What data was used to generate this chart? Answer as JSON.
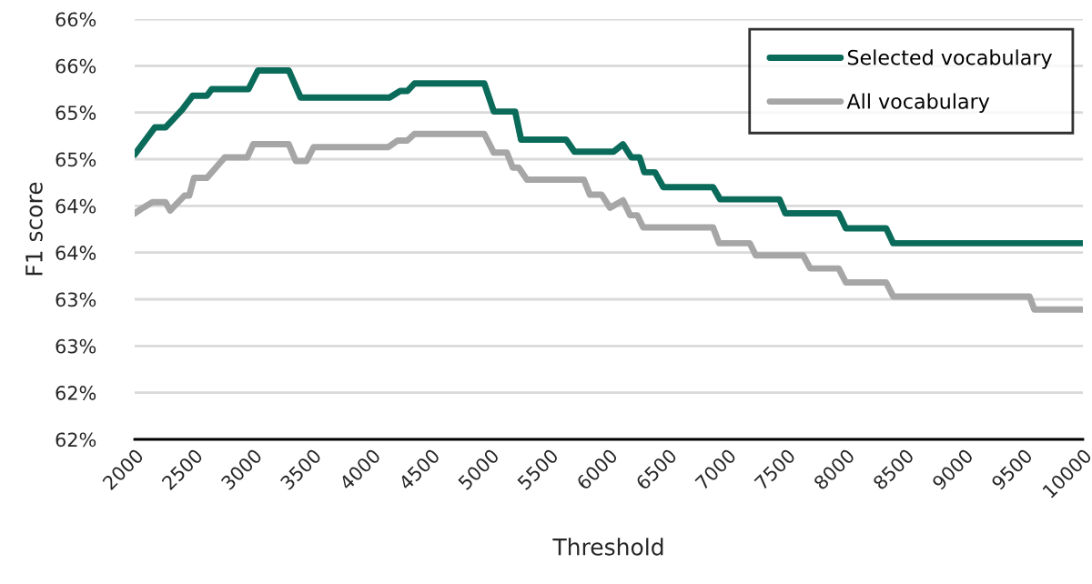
{
  "chart_data": {
    "type": "line",
    "xlabel": "Threshold",
    "ylabel": "F1 score",
    "xlim": [
      2000,
      10000
    ],
    "xticks": [
      2000,
      2500,
      3000,
      3500,
      4000,
      4500,
      5000,
      5500,
      6000,
      6500,
      7000,
      7500,
      8000,
      8500,
      9000,
      9500,
      10000
    ],
    "ylim": [
      61.5,
      66.0
    ],
    "yticks": [
      {
        "value": 61.5,
        "label": "62%"
      },
      {
        "value": 62.0,
        "label": "62%"
      },
      {
        "value": 62.5,
        "label": "63%"
      },
      {
        "value": 63.0,
        "label": "63%"
      },
      {
        "value": 63.5,
        "label": "64%"
      },
      {
        "value": 64.0,
        "label": "64%"
      },
      {
        "value": 64.5,
        "label": "65%"
      },
      {
        "value": 65.0,
        "label": "65%"
      },
      {
        "value": 65.5,
        "label": "66%"
      },
      {
        "value": 66.0,
        "label": "66%"
      }
    ],
    "grid": "y",
    "legend": "top right",
    "line_style": "solid",
    "marker": "none",
    "series": [
      {
        "name": "Selected vocabulary",
        "color": "#0b6b5a",
        "x": [
          2000,
          2170,
          2260,
          2400,
          2490,
          2610,
          2650,
          2960,
          3040,
          3300,
          3400,
          4150,
          4240,
          4300,
          4360,
          4950,
          5030,
          5210,
          5260,
          5640,
          5710,
          6040,
          6120,
          6190,
          6260,
          6300,
          6390,
          6460,
          6880,
          6940,
          7440,
          7490,
          7940,
          8000,
          8340,
          8400,
          10000
        ],
        "values": [
          64.55,
          64.84,
          64.84,
          65.03,
          65.18,
          65.18,
          65.25,
          65.25,
          65.45,
          65.45,
          65.16,
          65.16,
          65.23,
          65.23,
          65.31,
          65.31,
          65.01,
          65.01,
          64.71,
          64.71,
          64.58,
          64.58,
          64.66,
          64.52,
          64.52,
          64.36,
          64.36,
          64.2,
          64.2,
          64.07,
          64.07,
          63.92,
          63.92,
          63.76,
          63.76,
          63.6,
          63.6
        ]
      },
      {
        "name": "All vocabulary",
        "color": "#a6a6a6",
        "x": [
          2000,
          2070,
          2150,
          2260,
          2300,
          2420,
          2460,
          2500,
          2610,
          2760,
          2950,
          3000,
          3300,
          3360,
          3450,
          3510,
          4140,
          4220,
          4300,
          4360,
          4950,
          5030,
          5140,
          5190,
          5240,
          5310,
          5790,
          5840,
          5940,
          6010,
          6120,
          6180,
          6240,
          6290,
          6880,
          6930,
          7190,
          7240,
          7640,
          7700,
          7940,
          8000,
          8340,
          8400,
          9550,
          9590,
          10000
        ],
        "values": [
          63.92,
          63.98,
          64.04,
          64.04,
          63.95,
          64.11,
          64.11,
          64.3,
          64.3,
          64.52,
          64.52,
          64.66,
          64.66,
          64.48,
          64.48,
          64.63,
          64.63,
          64.7,
          64.7,
          64.77,
          64.77,
          64.57,
          64.57,
          64.41,
          64.41,
          64.28,
          64.28,
          64.12,
          64.12,
          63.98,
          64.06,
          63.9,
          63.9,
          63.77,
          63.77,
          63.6,
          63.6,
          63.47,
          63.47,
          63.33,
          63.33,
          63.18,
          63.18,
          63.03,
          63.03,
          62.89,
          62.89
        ]
      }
    ]
  }
}
